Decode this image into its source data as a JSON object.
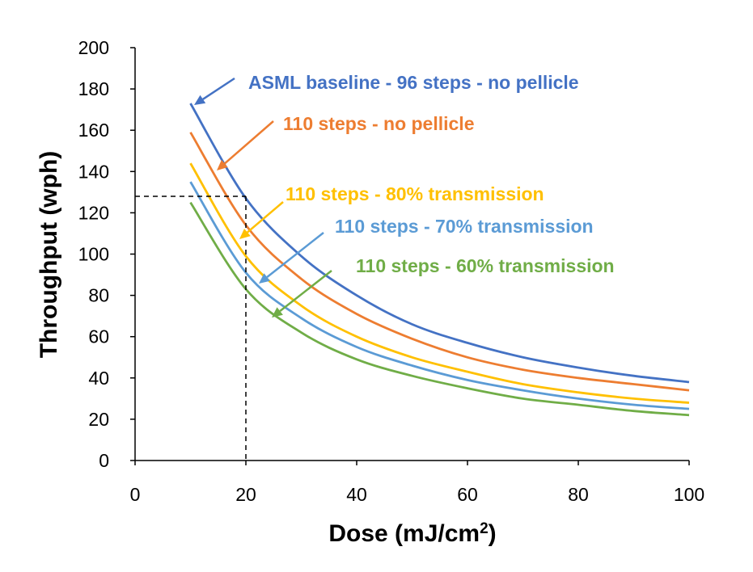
{
  "chart_data": {
    "type": "line",
    "xlabel": "Dose (mJ/cm",
    "xlabel_sup": "2",
    "xlabel_close": ")",
    "ylabel": "Throughput (wph)",
    "xlim": [
      0,
      100
    ],
    "ylim": [
      0,
      200
    ],
    "x_ticks": [
      "0",
      "20",
      "40",
      "60",
      "80",
      "100"
    ],
    "y_ticks": [
      "0",
      "20",
      "40",
      "60",
      "80",
      "100",
      "120",
      "140",
      "160",
      "180",
      "200"
    ],
    "grid": false,
    "reference_point": {
      "x": 20,
      "y": 128
    },
    "series": [
      {
        "name": "ASML baseline - 96 steps - no pellicle",
        "color": "#4472C4",
        "x": [
          10,
          20,
          30,
          40,
          50,
          60,
          70,
          80,
          90,
          100
        ],
        "y": [
          173,
          127,
          99,
          80,
          66,
          57,
          50,
          45,
          41,
          38
        ]
      },
      {
        "name": "110 steps - no pellicle",
        "color": "#ED7D31",
        "x": [
          10,
          20,
          30,
          40,
          50,
          60,
          70,
          80,
          90,
          100
        ],
        "y": [
          159,
          114,
          88,
          71,
          59,
          50,
          44,
          40,
          37,
          34
        ]
      },
      {
        "name": "110 steps - 80% transmission",
        "color": "#FFC000",
        "x": [
          10,
          20,
          30,
          40,
          50,
          60,
          70,
          80,
          90,
          100
        ],
        "y": [
          144,
          99,
          75,
          60,
          50,
          43,
          37,
          33,
          30,
          28
        ]
      },
      {
        "name": "110 steps - 70% transmission",
        "color": "#5B9BD5",
        "x": [
          10,
          20,
          30,
          40,
          50,
          60,
          70,
          80,
          90,
          100
        ],
        "y": [
          135,
          91,
          69,
          55,
          46,
          39,
          34,
          30,
          27,
          25
        ]
      },
      {
        "name": "110 steps - 60% transmission",
        "color": "#70AD47",
        "x": [
          10,
          20,
          30,
          40,
          50,
          60,
          70,
          80,
          90,
          100
        ],
        "y": [
          125,
          83,
          62,
          49,
          41,
          35,
          30,
          27,
          24,
          22
        ]
      }
    ]
  }
}
